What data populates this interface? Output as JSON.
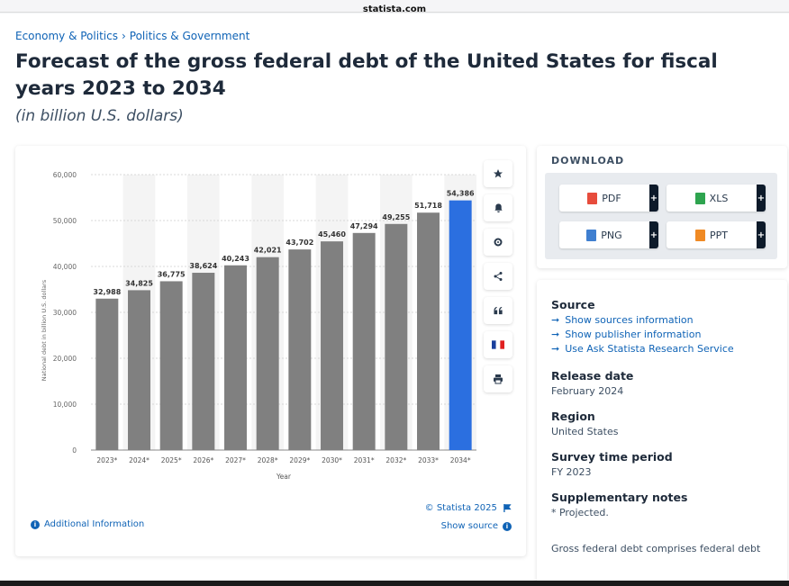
{
  "browser": {
    "domain": "statista.com"
  },
  "breadcrumb": {
    "item1": "Economy & Politics",
    "separator": "›",
    "item2": "Politics & Government"
  },
  "title": "Forecast of the gross federal debt of the United States for fiscal years 2023 to 2034",
  "subtitle": "(in billion U.S. dollars)",
  "chart_data": {
    "type": "bar",
    "categories": [
      "2023*",
      "2024*",
      "2025*",
      "2026*",
      "2027*",
      "2028*",
      "2029*",
      "2030*",
      "2031*",
      "2032*",
      "2033*",
      "2034*"
    ],
    "values": [
      32988,
      34825,
      36775,
      38624,
      40243,
      42021,
      43702,
      45460,
      47294,
      49255,
      51718,
      54386
    ],
    "value_labels": [
      "32,988",
      "34,825",
      "36,775",
      "38,624",
      "40,243",
      "42,021",
      "43,702",
      "45,460",
      "47,294",
      "49,255",
      "51,718",
      "54,386"
    ],
    "highlight_index": 11,
    "bar_color": "#808080",
    "highlight_color": "#2b6fe0",
    "xlabel": "Year",
    "ylabel": "National debt in billion U.S. dollars",
    "ylim": [
      0,
      60000
    ],
    "yticks": [
      0,
      10000,
      20000,
      30000,
      40000,
      50000,
      60000
    ],
    "ytick_labels": [
      "0",
      "10,000",
      "20,000",
      "30,000",
      "40,000",
      "50,000",
      "60,000"
    ],
    "grid": true
  },
  "toolbar": {
    "buttons": [
      {
        "name": "star-icon"
      },
      {
        "name": "bell-icon"
      },
      {
        "name": "gear-icon"
      },
      {
        "name": "share-icon"
      },
      {
        "name": "quote-icon"
      },
      {
        "name": "flag-icon"
      },
      {
        "name": "print-icon"
      }
    ]
  },
  "chart_footer": {
    "credit": "© Statista 2025",
    "show_source": "Show source",
    "additional_info": "Additional Information"
  },
  "download": {
    "title": "DOWNLOAD",
    "pdf": "PDF",
    "xls": "XLS",
    "png": "PNG",
    "ppt": "PPT",
    "plus": "+"
  },
  "info": {
    "source_title": "Source",
    "links": [
      "Show sources information",
      "Show publisher information",
      "Use Ask Statista Research Service"
    ],
    "release_title": "Release date",
    "release_value": "February 2024",
    "region_title": "Region",
    "region_value": "United States",
    "survey_title": "Survey time period",
    "survey_value": "FY 2023",
    "notes_title": "Supplementary notes",
    "notes_value": "* Projected.",
    "notes_text": "Gross federal debt comprises federal debt"
  },
  "colors": {
    "link": "#0f63b6",
    "title": "#1e2a3a",
    "bar": "#808080",
    "highlight": "#2b6fe0"
  }
}
